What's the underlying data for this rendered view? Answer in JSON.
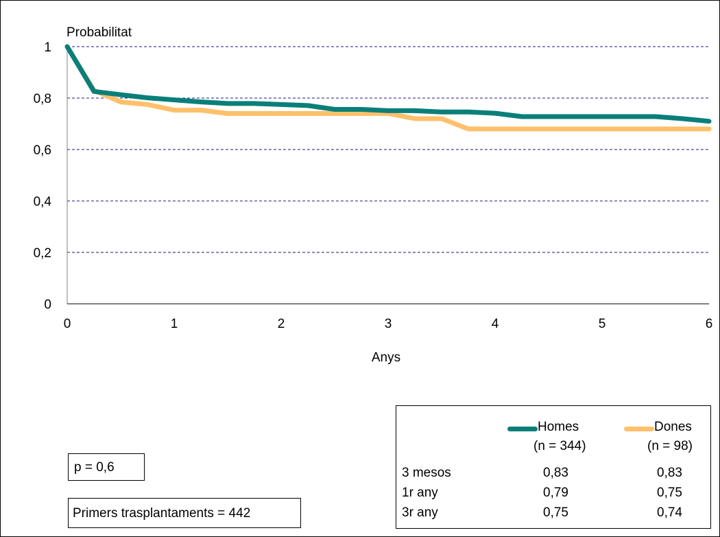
{
  "chart_data": {
    "type": "line",
    "ylabel": "Probabilitat",
    "xlabel": "Anys",
    "xlim": [
      0,
      6
    ],
    "ylim": [
      0,
      1
    ],
    "x_ticks": [
      "0",
      "1",
      "2",
      "3",
      "4",
      "5",
      "6"
    ],
    "y_ticks": [
      "0",
      "0,2",
      "0,4",
      "0,6",
      "0,8",
      "1"
    ],
    "grid": "horizontal dashed",
    "series": [
      {
        "name": "Homes",
        "color": "#0a7f7a",
        "points": [
          [
            0,
            1.0
          ],
          [
            0.25,
            0.826
          ],
          [
            0.5,
            0.813
          ],
          [
            0.75,
            0.801
          ],
          [
            1.0,
            0.793
          ],
          [
            1.25,
            0.785
          ],
          [
            1.5,
            0.779
          ],
          [
            1.75,
            0.779
          ],
          [
            2.0,
            0.775
          ],
          [
            2.25,
            0.771
          ],
          [
            2.5,
            0.756
          ],
          [
            2.75,
            0.756
          ],
          [
            3.0,
            0.751
          ],
          [
            3.25,
            0.751
          ],
          [
            3.5,
            0.746
          ],
          [
            3.75,
            0.746
          ],
          [
            4.0,
            0.741
          ],
          [
            4.25,
            0.728
          ],
          [
            4.5,
            0.728
          ],
          [
            4.75,
            0.728
          ],
          [
            5.0,
            0.728
          ],
          [
            5.25,
            0.728
          ],
          [
            5.5,
            0.728
          ],
          [
            5.75,
            0.72
          ],
          [
            6.0,
            0.71
          ]
        ]
      },
      {
        "name": "Dones",
        "color": "#ffc06b",
        "points": [
          [
            0,
            1.0
          ],
          [
            0.25,
            0.83
          ],
          [
            0.5,
            0.785
          ],
          [
            0.75,
            0.775
          ],
          [
            1.0,
            0.753
          ],
          [
            1.25,
            0.753
          ],
          [
            1.5,
            0.74
          ],
          [
            1.75,
            0.74
          ],
          [
            2.0,
            0.74
          ],
          [
            2.25,
            0.74
          ],
          [
            2.5,
            0.74
          ],
          [
            2.75,
            0.74
          ],
          [
            3.0,
            0.74
          ],
          [
            3.25,
            0.72
          ],
          [
            3.5,
            0.72
          ],
          [
            3.75,
            0.68
          ],
          [
            4.0,
            0.68
          ],
          [
            4.25,
            0.68
          ],
          [
            4.5,
            0.68
          ],
          [
            4.75,
            0.68
          ],
          [
            5.0,
            0.68
          ],
          [
            5.25,
            0.68
          ],
          [
            5.5,
            0.68
          ],
          [
            5.75,
            0.68
          ],
          [
            6.0,
            0.68
          ]
        ]
      }
    ]
  },
  "legend": {
    "homes": {
      "label": "Homes",
      "n": "(n = 344)"
    },
    "dones": {
      "label": "Dones",
      "n": "(n = 98)"
    }
  },
  "table": {
    "rows": [
      {
        "label": "3 mesos",
        "homes": "0,83",
        "dones": "0,83"
      },
      {
        "label": "1r any",
        "homes": "0,79",
        "dones": "0,75"
      },
      {
        "label": "3r any",
        "homes": "0,75",
        "dones": "0,74"
      }
    ]
  },
  "annotations": {
    "pvalue": "p = 0,6",
    "primers": "Primers trasplantaments = 442"
  }
}
